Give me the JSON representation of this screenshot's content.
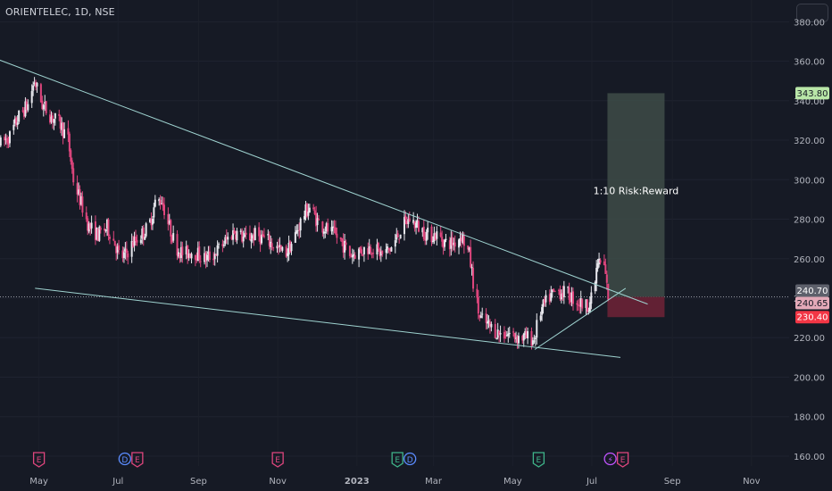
{
  "header": {
    "symbol": "ORIENTELEC, 1D, NSE"
  },
  "colors": {
    "background": "#161a25",
    "up": "#e8e8ee",
    "down": "#e0467e",
    "trendline": "#9fd3d0",
    "reward_zone": "#3e4c48",
    "risk_zone": "#6a2236",
    "target_badge": "#b9e6a8",
    "stop_badge": "#f23645",
    "entry_badge": "#e3a9b8",
    "current_badge": "#5d606b"
  },
  "chart_data": {
    "type": "candlestick",
    "title": "ORIENTELEC, 1D, NSE",
    "ylim": [
      155,
      391
    ],
    "y_ticks": [
      160,
      180,
      200,
      220,
      240,
      260,
      280,
      300,
      320,
      340,
      360,
      380
    ],
    "y_tick_labels": [
      "160.00",
      "180.00",
      "200.00",
      "220.00",
      "240.00",
      "260.00",
      "280.00",
      "300.00",
      "320.00",
      "340.00",
      "360.00",
      "380.00"
    ],
    "x_labels": [
      "May",
      "Jul",
      "Sep",
      "Nov",
      "2023",
      "Mar",
      "May",
      "Jul",
      "Sep",
      "Nov"
    ],
    "x_label_dates": [
      "2022-05-01",
      "2022-07-01",
      "2022-09-01",
      "2022-11-01",
      "2023-01-01",
      "2023-03-01",
      "2023-05-01",
      "2023-07-01",
      "2023-09-01",
      "2023-11-01"
    ],
    "x_start_date": "2022-04-01",
    "x_end_date": "2023-11-30",
    "price_path": [
      [
        "2022-04-01",
        318
      ],
      [
        "2022-04-08",
        322
      ],
      [
        "2022-04-15",
        332
      ],
      [
        "2022-04-22",
        338
      ],
      [
        "2022-04-27",
        350
      ],
      [
        "2022-05-03",
        338
      ],
      [
        "2022-05-10",
        332
      ],
      [
        "2022-05-17",
        328
      ],
      [
        "2022-05-23",
        320
      ],
      [
        "2022-05-27",
        300
      ],
      [
        "2022-06-01",
        290
      ],
      [
        "2022-06-08",
        276
      ],
      [
        "2022-06-15",
        272
      ],
      [
        "2022-06-22",
        276
      ],
      [
        "2022-06-28",
        268
      ],
      [
        "2022-07-02",
        260
      ],
      [
        "2022-07-06",
        262
      ],
      [
        "2022-07-12",
        268
      ],
      [
        "2022-07-18",
        272
      ],
      [
        "2022-07-24",
        276
      ],
      [
        "2022-07-29",
        288
      ],
      [
        "2022-08-03",
        290
      ],
      [
        "2022-08-08",
        278
      ],
      [
        "2022-08-14",
        266
      ],
      [
        "2022-08-20",
        262
      ],
      [
        "2022-08-27",
        264
      ],
      [
        "2022-09-05",
        260
      ],
      [
        "2022-09-12",
        262
      ],
      [
        "2022-09-20",
        268
      ],
      [
        "2022-09-28",
        274
      ],
      [
        "2022-10-06",
        270
      ],
      [
        "2022-10-14",
        272
      ],
      [
        "2022-10-22",
        270
      ],
      [
        "2022-10-30",
        266
      ],
      [
        "2022-11-06",
        262
      ],
      [
        "2022-11-13",
        270
      ],
      [
        "2022-11-20",
        282
      ],
      [
        "2022-11-25",
        286
      ],
      [
        "2022-12-02",
        278
      ],
      [
        "2022-12-10",
        274
      ],
      [
        "2022-12-18",
        270
      ],
      [
        "2022-12-26",
        262
      ],
      [
        "2023-01-03",
        264
      ],
      [
        "2023-01-12",
        266
      ],
      [
        "2023-01-20",
        262
      ],
      [
        "2023-01-28",
        266
      ],
      [
        "2023-02-04",
        276
      ],
      [
        "2023-02-10",
        280
      ],
      [
        "2023-02-17",
        276
      ],
      [
        "2023-02-24",
        272
      ],
      [
        "2023-03-03",
        272
      ],
      [
        "2023-03-10",
        268
      ],
      [
        "2023-03-16",
        268
      ],
      [
        "2023-03-22",
        272
      ],
      [
        "2023-03-28",
        262
      ],
      [
        "2023-04-01",
        244
      ],
      [
        "2023-04-05",
        230
      ],
      [
        "2023-04-12",
        226
      ],
      [
        "2023-04-20",
        222
      ],
      [
        "2023-04-28",
        222
      ],
      [
        "2023-05-06",
        220
      ],
      [
        "2023-05-12",
        220
      ],
      [
        "2023-05-17",
        219
      ],
      [
        "2023-05-21",
        232
      ],
      [
        "2023-05-28",
        240
      ],
      [
        "2023-06-04",
        244
      ],
      [
        "2023-06-12",
        242
      ],
      [
        "2023-06-20",
        238
      ],
      [
        "2023-06-26",
        236
      ],
      [
        "2023-07-01",
        240
      ],
      [
        "2023-07-05",
        258
      ],
      [
        "2023-07-10",
        256
      ],
      [
        "2023-07-13",
        240.7
      ]
    ],
    "trendlines": [
      {
        "from": [
          "2022-03-30",
          361
        ],
        "to": [
          "2023-08-13",
          237
        ]
      },
      {
        "from": [
          "2022-04-28",
          245
        ],
        "to": [
          "2023-07-23",
          210
        ]
      },
      {
        "from": [
          "2023-05-18",
          214
        ],
        "to": [
          "2023-07-27",
          245
        ]
      }
    ],
    "position": {
      "from_date": "2023-07-13",
      "to_date": "2023-08-26",
      "entry": 240.65,
      "target": 343.8,
      "stop": 230.4,
      "label": "1:10 Risk:Reward"
    },
    "price_badges": [
      {
        "value": "343.80",
        "role": "target"
      },
      {
        "value": "240.70",
        "role": "current"
      },
      {
        "value": "240.65",
        "role": "entry"
      },
      {
        "value": "230.40",
        "role": "stop"
      }
    ],
    "events": [
      {
        "date": "2022-05-01",
        "letters": [
          "E"
        ],
        "types": [
          "earnings"
        ]
      },
      {
        "date": "2022-07-11",
        "letters": [
          "D",
          "E"
        ],
        "types": [
          "dividend",
          "earnings"
        ]
      },
      {
        "date": "2022-11-01",
        "letters": [
          "E"
        ],
        "types": [
          "earnings"
        ]
      },
      {
        "date": "2023-02-06",
        "letters": [
          "E",
          "D"
        ],
        "types": [
          "earnings-green",
          "dividend"
        ]
      },
      {
        "date": "2023-05-21",
        "letters": [
          "E"
        ],
        "types": [
          "earnings-green"
        ]
      },
      {
        "date": "2023-07-20",
        "letters": [
          "⚡",
          "E"
        ],
        "types": [
          "split",
          "earnings"
        ]
      }
    ]
  }
}
